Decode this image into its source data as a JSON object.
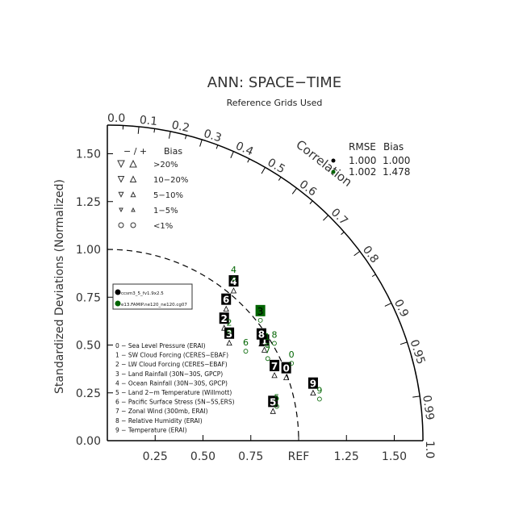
{
  "chart_data": {
    "type": "scatter",
    "title": "ANN: SPACE−TIME",
    "subtitle": "Reference Grids Used",
    "ylabel": "Standardized Deviations (Normalized)",
    "arc_label": "Correlation",
    "ref_label": "REF",
    "x_ticks": [
      "0.25",
      "0.50",
      "0.75",
      "1.25",
      "1.50"
    ],
    "y_ticks": [
      "0.00",
      "0.25",
      "0.50",
      "0.75",
      "1.00",
      "1.25",
      "1.50"
    ],
    "corr_ticks": [
      "0.0",
      "0.1",
      "0.2",
      "0.3",
      "0.4",
      "0.5",
      "0.6",
      "0.7",
      "0.8",
      "0.9",
      "0.95",
      "0.99",
      "1.0"
    ],
    "stat_header": {
      "rmse": "RMSE",
      "bias": "Bias"
    },
    "series": [
      {
        "name": "ccsm3_5_fv1.9x2.5",
        "color": "#000000",
        "rmse": "1.000",
        "bias": "1.000",
        "points": [
          {
            "label": "0",
            "std": 1.01,
            "corr": 0.926
          },
          {
            "label": "1",
            "std": 0.975,
            "corr": 0.842
          },
          {
            "label": "2",
            "std": 0.885,
            "corr": 0.69
          },
          {
            "label": "3",
            "std": 0.85,
            "corr": 0.75
          },
          {
            "label": "4",
            "std": 1.065,
            "corr": 0.62
          },
          {
            "label": "5",
            "std": 0.89,
            "corr": 0.973
          },
          {
            "label": "6",
            "std": 0.966,
            "corr": 0.643
          },
          {
            "label": "7",
            "std": 0.958,
            "corr": 0.912
          },
          {
            "label": "8",
            "std": 0.98,
            "corr": 0.822
          },
          {
            "label": "9",
            "std": 1.117,
            "corr": 0.963
          }
        ]
      },
      {
        "name": "e13.FAMIP.ne120_ne120.cg07",
        "color": "#006400",
        "rmse": "1.002",
        "bias": "1.478",
        "points": [
          {
            "label": "0",
            "std": 1.065,
            "corr": 0.904
          },
          {
            "label": "1",
            "std": 1.0,
            "corr": 0.836
          },
          {
            "label": "2",
            "std": 0.89,
            "corr": 0.716
          },
          {
            "label": "3",
            "std": 1.05,
            "corr": 0.762
          },
          {
            "label": "4",
            "std": 1.115,
            "corr": 0.592
          },
          {
            "label": "5",
            "std": 0.915,
            "corr": 0.968
          },
          {
            "label": "6",
            "std": 0.89,
            "corr": 0.813
          },
          {
            "label": "7",
            "std": 0.966,
            "corr": 0.868
          },
          {
            "label": "8",
            "std": 1.037,
            "corr": 0.842
          },
          {
            "label": "9",
            "std": 1.141,
            "corr": 0.972
          }
        ]
      }
    ],
    "bias_legend": {
      "header": [
        "− / +",
        "Bias"
      ],
      "rows": [
        ">20%",
        "10−20%",
        "5−10%",
        "1−5%",
        "<1%"
      ]
    },
    "variables": [
      "0 − Sea Level Pressure (ERAI)",
      "1 − SW Cloud Forcing (CERES−EBAF)",
      "2 − LW Cloud Forcing (CERES−EBAF)",
      "3 − Land Rainfall (30N−30S, GPCP)",
      "4 − Ocean Rainfall (30N−30S, GPCP)",
      "5 − Land 2−m Temperature (Willmott)",
      "6 − Pacific Surface Stress (5N−5S,ERS)",
      "7 − Zonal Wind (300mb, ERAI)",
      "8 − Relative Humidity (ERAI)",
      "9 − Temperature (ERAI)"
    ]
  }
}
